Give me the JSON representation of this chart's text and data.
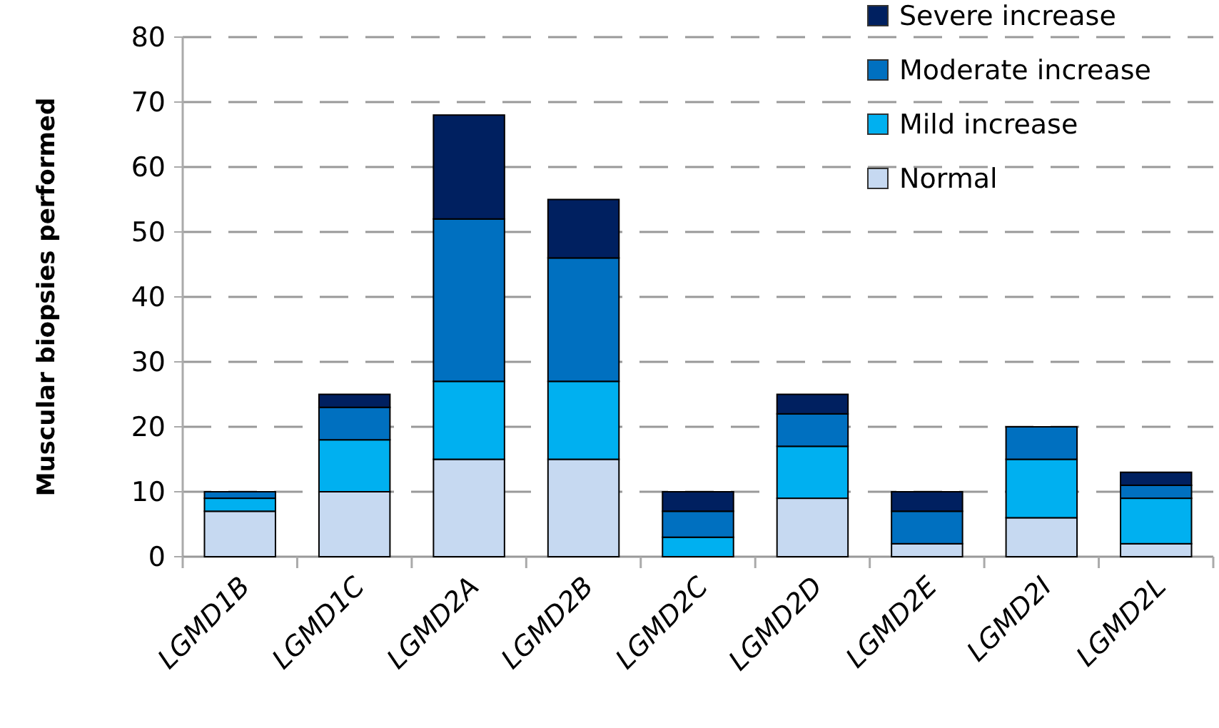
{
  "chart_data": {
    "type": "bar",
    "stacked": true,
    "ylabel": "Muscular biopsies performed",
    "categories": [
      "LGMD1B",
      "LGMD1C",
      "LGMD2A",
      "LGMD2B",
      "LGMD2C",
      "LGMD2D",
      "LGMD2E",
      "LGMD2I",
      "LGMD2L"
    ],
    "series": [
      {
        "name": "Normal",
        "color": "#c6d9f1",
        "values": [
          7,
          10,
          15,
          15,
          0,
          9,
          2,
          6,
          2
        ]
      },
      {
        "name": "Mild increase",
        "color": "#00b0f0",
        "values": [
          2,
          8,
          12,
          12,
          3,
          8,
          0,
          9,
          7
        ]
      },
      {
        "name": "Moderate increase",
        "color": "#0070c0",
        "values": [
          1,
          5,
          25,
          19,
          4,
          5,
          5,
          5,
          2
        ]
      },
      {
        "name": "Severe increase",
        "color": "#002060",
        "values": [
          0,
          2,
          16,
          9,
          3,
          3,
          3,
          0,
          2
        ]
      }
    ],
    "ylim": [
      0,
      80
    ],
    "yticks": [
      0,
      10,
      20,
      30,
      40,
      50,
      60,
      70,
      80
    ],
    "grid": "y",
    "legend": "top right"
  }
}
